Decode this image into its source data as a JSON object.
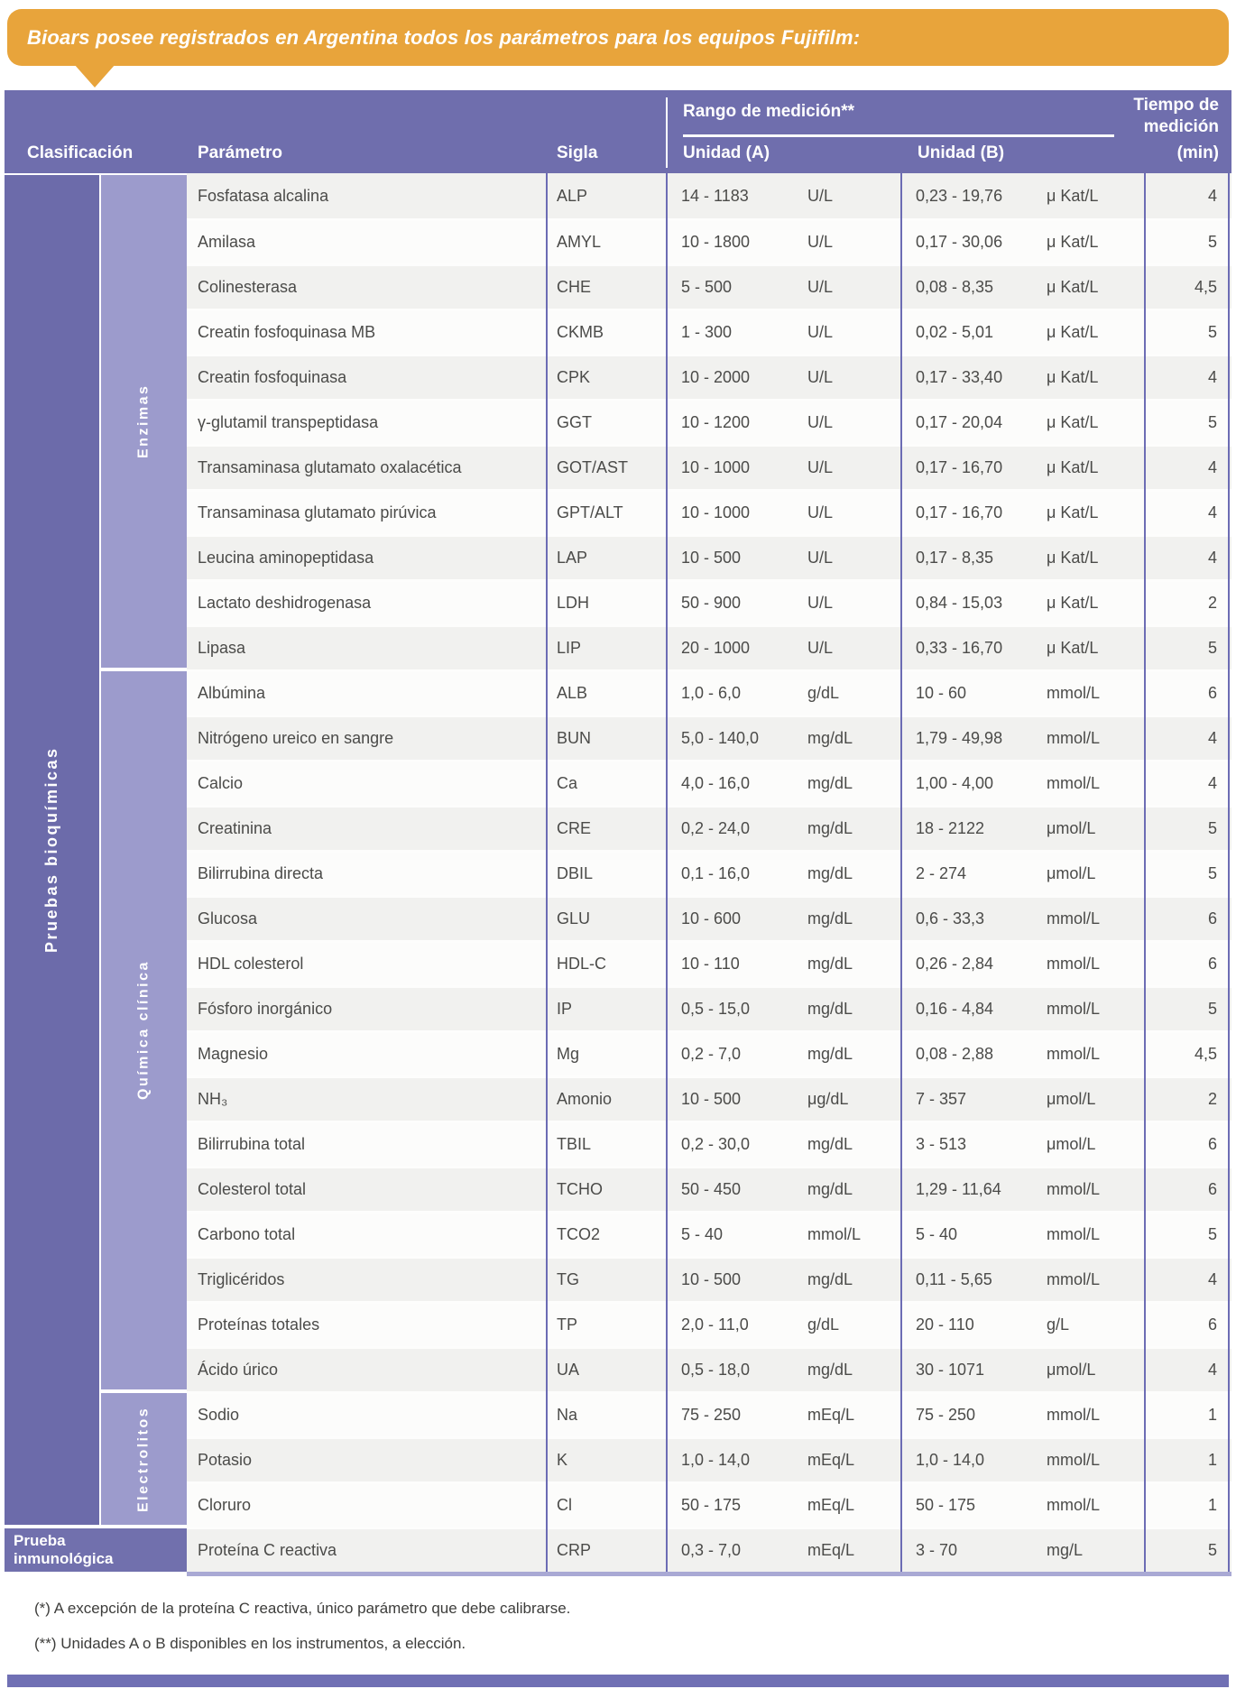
{
  "banner": {
    "text": "Bioars posee registrados en Argentina todos los parámetros para los equipos Fujifilm:",
    "bg_color": "#E8A43B"
  },
  "header": {
    "clasificacion": "Clasificación",
    "parametro": "Parámetro",
    "sigla": "Sigla",
    "rango": "Rango de medición**",
    "unidad_a": "Unidad (A)",
    "unidad_b": "Unidad (B)",
    "tiempo_line1": "Tiempo de",
    "tiempo_line2": "medición",
    "tiempo_line3": "(min)",
    "bg_color": "#6F6EAD"
  },
  "classification": {
    "main_label": "Pruebas bioquímicas",
    "immuno_line1": "Prueba",
    "immuno_line2": "inmunológica",
    "groups": [
      {
        "label": "Enzimas",
        "row_count": 11
      },
      {
        "label": "Química clínica",
        "row_count": 16
      },
      {
        "label": "Electrolitos",
        "row_count": 3
      }
    ],
    "main_color": "#6C6BAA",
    "sub_color": "#9C9BCC"
  },
  "table": {
    "rows": [
      {
        "param": "Fosfatasa alcalina",
        "sigla": "ALP",
        "range_a": "14 - 1183",
        "unit_a": "U/L",
        "range_b": "0,23 - 19,76",
        "unit_b": "μ Kat/L",
        "time": "4"
      },
      {
        "param": "Amilasa",
        "sigla": "AMYL",
        "range_a": "10 - 1800",
        "unit_a": "U/L",
        "range_b": "0,17 - 30,06",
        "unit_b": "μ Kat/L",
        "time": "5"
      },
      {
        "param": "Colinesterasa",
        "sigla": "CHE",
        "range_a": "5 - 500",
        "unit_a": "U/L",
        "range_b": "0,08 - 8,35",
        "unit_b": "μ Kat/L",
        "time": "4,5"
      },
      {
        "param": "Creatin fosfoquinasa MB",
        "sigla": "CKMB",
        "range_a": "1 - 300",
        "unit_a": "U/L",
        "range_b": "0,02 - 5,01",
        "unit_b": "μ Kat/L",
        "time": "5"
      },
      {
        "param": "Creatin fosfoquinasa",
        "sigla": "CPK",
        "range_a": "10 - 2000",
        "unit_a": "U/L",
        "range_b": "0,17 - 33,40",
        "unit_b": "μ Kat/L",
        "time": "4"
      },
      {
        "param": "γ-glutamil transpeptidasa",
        "sigla": "GGT",
        "range_a": "10 - 1200",
        "unit_a": "U/L",
        "range_b": "0,17 - 20,04",
        "unit_b": "μ Kat/L",
        "time": "5"
      },
      {
        "param": "Transaminasa glutamato oxalacética",
        "sigla": "GOT/AST",
        "range_a": "10 - 1000",
        "unit_a": "U/L",
        "range_b": "0,17 - 16,70",
        "unit_b": "μ Kat/L",
        "time": "4"
      },
      {
        "param": "Transaminasa glutamato pirúvica",
        "sigla": "GPT/ALT",
        "range_a": "10 - 1000",
        "unit_a": "U/L",
        "range_b": "0,17 - 16,70",
        "unit_b": "μ Kat/L",
        "time": "4"
      },
      {
        "param": "Leucina aminopeptidasa",
        "sigla": "LAP",
        "range_a": "10 - 500",
        "unit_a": "U/L",
        "range_b": "0,17 - 8,35",
        "unit_b": "μ Kat/L",
        "time": "4"
      },
      {
        "param": "Lactato deshidrogenasa",
        "sigla": "LDH",
        "range_a": "50 - 900",
        "unit_a": "U/L",
        "range_b": "0,84 - 15,03",
        "unit_b": "μ Kat/L",
        "time": "2"
      },
      {
        "param": "Lipasa",
        "sigla": "LIP",
        "range_a": "20 - 1000",
        "unit_a": "U/L",
        "range_b": "0,33 - 16,70",
        "unit_b": "μ Kat/L",
        "time": "5"
      },
      {
        "param": "Albúmina",
        "sigla": "ALB",
        "range_a": "1,0 - 6,0",
        "unit_a": "g/dL",
        "range_b": "10 - 60",
        "unit_b": "mmol/L",
        "time": "6"
      },
      {
        "param": "Nitrógeno ureico en sangre",
        "sigla": "BUN",
        "range_a": "5,0 - 140,0",
        "unit_a": "mg/dL",
        "range_b": "1,79 - 49,98",
        "unit_b": "mmol/L",
        "time": "4"
      },
      {
        "param": "Calcio",
        "sigla": "Ca",
        "range_a": "4,0 - 16,0",
        "unit_a": "mg/dL",
        "range_b": "1,00 - 4,00",
        "unit_b": "mmol/L",
        "time": "4"
      },
      {
        "param": "Creatinina",
        "sigla": "CRE",
        "range_a": "0,2 - 24,0",
        "unit_a": "mg/dL",
        "range_b": "18 - 2122",
        "unit_b": "μmol/L",
        "time": "5"
      },
      {
        "param": "Bilirrubina directa",
        "sigla": "DBIL",
        "range_a": "0,1 - 16,0",
        "unit_a": "mg/dL",
        "range_b": "2 - 274",
        "unit_b": "μmol/L",
        "time": "5"
      },
      {
        "param": "Glucosa",
        "sigla": "GLU",
        "range_a": "10 - 600",
        "unit_a": "mg/dL",
        "range_b": "0,6 - 33,3",
        "unit_b": "mmol/L",
        "time": "6"
      },
      {
        "param": "HDL colesterol",
        "sigla": "HDL-C",
        "range_a": "10 - 110",
        "unit_a": "mg/dL",
        "range_b": "0,26 - 2,84",
        "unit_b": "mmol/L",
        "time": "6"
      },
      {
        "param": "Fósforo inorgánico",
        "sigla": "IP",
        "range_a": "0,5 - 15,0",
        "unit_a": "mg/dL",
        "range_b": "0,16 - 4,84",
        "unit_b": "mmol/L",
        "time": "5"
      },
      {
        "param": "Magnesio",
        "sigla": "Mg",
        "range_a": "0,2 - 7,0",
        "unit_a": "mg/dL",
        "range_b": "0,08 - 2,88",
        "unit_b": "mmol/L",
        "time": "4,5"
      },
      {
        "param": "NH₃",
        "sigla": "Amonio",
        "range_a": "10 - 500",
        "unit_a": "μg/dL",
        "range_b": "7 - 357",
        "unit_b": "μmol/L",
        "time": "2"
      },
      {
        "param": "Bilirrubina total",
        "sigla": "TBIL",
        "range_a": "0,2 - 30,0",
        "unit_a": "mg/dL",
        "range_b": "3 - 513",
        "unit_b": "μmol/L",
        "time": "6"
      },
      {
        "param": "Colesterol total",
        "sigla": "TCHO",
        "range_a": "50 - 450",
        "unit_a": "mg/dL",
        "range_b": "1,29 - 11,64",
        "unit_b": "mmol/L",
        "time": "6"
      },
      {
        "param": "Carbono total",
        "sigla": "TCO2",
        "range_a": "5 - 40",
        "unit_a": "mmol/L",
        "range_b": "5 - 40",
        "unit_b": "mmol/L",
        "time": "5"
      },
      {
        "param": "Triglicéridos",
        "sigla": "TG",
        "range_a": "10 - 500",
        "unit_a": "mg/dL",
        "range_b": "0,11 - 5,65",
        "unit_b": "mmol/L",
        "time": "4"
      },
      {
        "param": "Proteínas totales",
        "sigla": "TP",
        "range_a": "2,0 - 11,0",
        "unit_a": "g/dL",
        "range_b": "20 - 110",
        "unit_b": "g/L",
        "time": "6"
      },
      {
        "param": "Ácido úrico",
        "sigla": "UA",
        "range_a": "0,5 - 18,0",
        "unit_a": "mg/dL",
        "range_b": "30 - 1071",
        "unit_b": "μmol/L",
        "time": "4"
      },
      {
        "param": "Sodio",
        "sigla": "Na",
        "range_a": "75 - 250",
        "unit_a": "mEq/L",
        "range_b": "75 - 250",
        "unit_b": "mmol/L",
        "time": "1"
      },
      {
        "param": "Potasio",
        "sigla": "K",
        "range_a": "1,0 - 14,0",
        "unit_a": "mEq/L",
        "range_b": "1,0 - 14,0",
        "unit_b": "mmol/L",
        "time": "1"
      },
      {
        "param": "Cloruro",
        "sigla": "Cl",
        "range_a": "50 - 175",
        "unit_a": "mEq/L",
        "range_b": "50 - 175",
        "unit_b": "mmol/L",
        "time": "1"
      },
      {
        "param": "Proteína C reactiva",
        "sigla": "CRP",
        "range_a": "0,3 - 7,0",
        "unit_a": "mEq/L",
        "range_b": "3 - 70",
        "unit_b": "mg/L",
        "time": "5"
      }
    ]
  },
  "footnotes": [
    "(*) A excepción de la proteína C reactiva, único parámetro que debe calibrarse.",
    "(**) Unidades A o B disponibles en los instrumentos, a elección."
  ],
  "colors": {
    "banner_orange": "#E8A43B",
    "header_purple": "#6F6EAD",
    "classification_dark_purple": "#6C6BAA",
    "classification_light_purple": "#9C9BCC",
    "row_gray": "#F1F1EF",
    "divider_blue": "#6C6CB4",
    "bottom_bar_purple": "#7070B4"
  }
}
